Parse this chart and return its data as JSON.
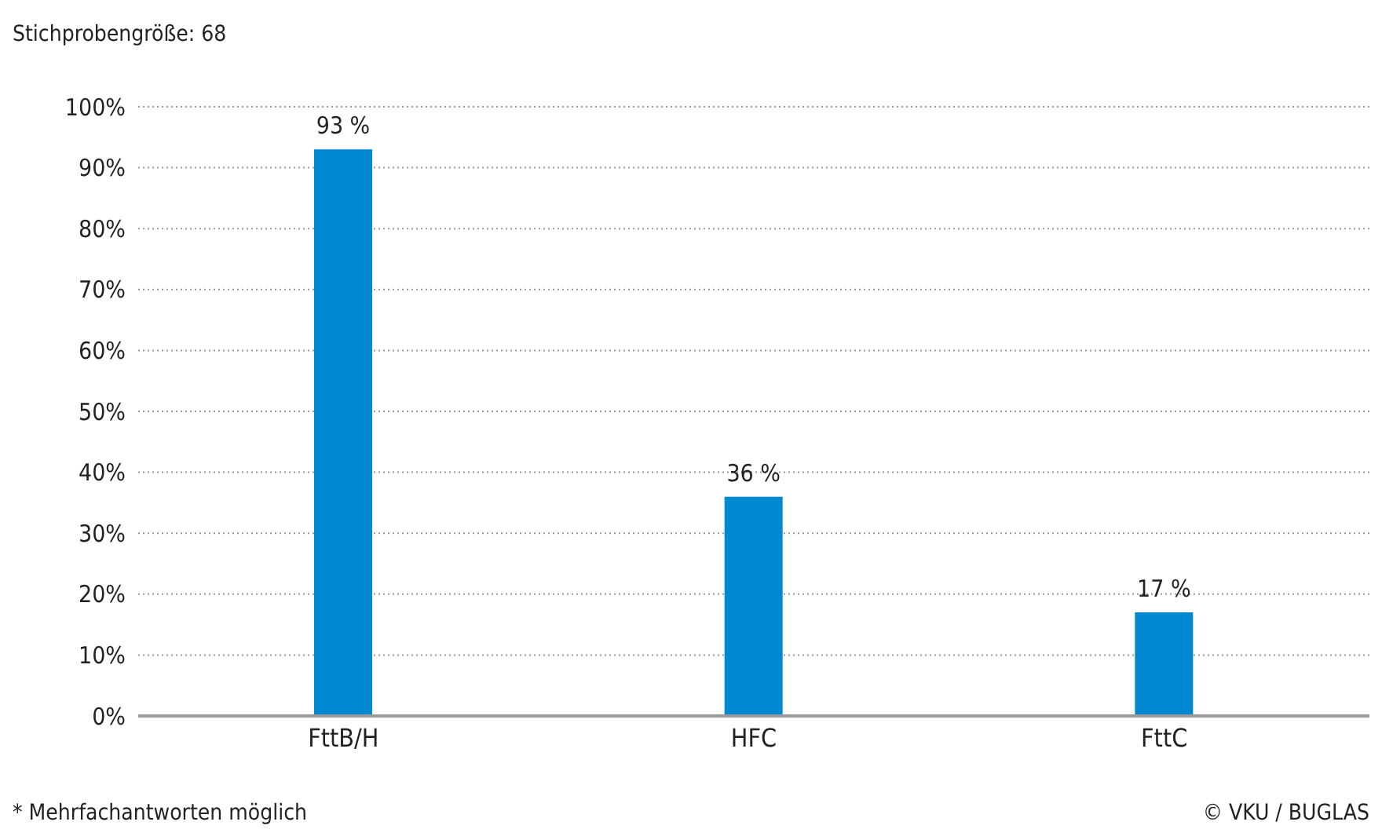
{
  "chart_data": {
    "type": "bar",
    "title": "Stichprobengröße: 68",
    "categories": [
      "FttB/H",
      "HFC",
      "FttC"
    ],
    "values": [
      93,
      36,
      17
    ],
    "color": "#0088d1",
    "value_labels": [
      "93 %",
      "36 %",
      "17 %"
    ],
    "ylim": [
      0,
      100
    ],
    "yticks": [
      {
        "value": 0,
        "label": "0%"
      },
      {
        "value": 10,
        "label": "10%"
      },
      {
        "value": 20,
        "label": "20%"
      },
      {
        "value": 30,
        "label": "30%"
      },
      {
        "value": 40,
        "label": "40%"
      },
      {
        "value": 50,
        "label": "50%"
      },
      {
        "value": 60,
        "label": "60%"
      },
      {
        "value": 70,
        "label": "70%"
      },
      {
        "value": 80,
        "label": "80%"
      },
      {
        "value": 90,
        "label": "90%"
      },
      {
        "value": 100,
        "label": "100%"
      }
    ],
    "grid": "y",
    "legend": false,
    "annotations": [
      "* Mehrfachantworten möglich",
      "© VKU / BUGLAS"
    ]
  }
}
